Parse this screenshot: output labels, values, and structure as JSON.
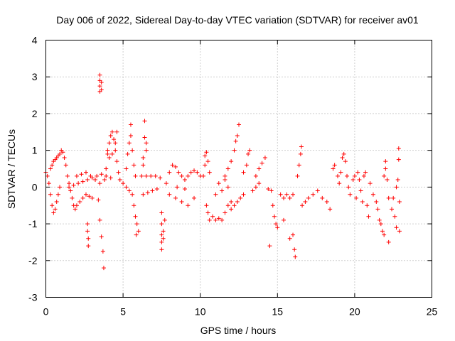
{
  "chart_data": {
    "type": "scatter",
    "title": "Day 006 of 2022, Sidereal Day-to-day VTEC variation (SDTVAR) for receiver av01",
    "xlabel": "GPS time / hours",
    "ylabel": "SDTVAR / TECUs",
    "xlim": [
      0,
      25
    ],
    "ylim": [
      -3,
      4
    ],
    "xticks": [
      0,
      5,
      10,
      15,
      20,
      25
    ],
    "yticks": [
      -3,
      -2,
      -1,
      0,
      1,
      2,
      3,
      4
    ],
    "grid": true,
    "marker": "+",
    "color": "#ff0000",
    "series": [
      {
        "name": "SDTVAR",
        "points": [
          [
            0.0,
            0.4
          ],
          [
            0.1,
            0.3
          ],
          [
            0.2,
            0.1
          ],
          [
            0.3,
            -0.2
          ],
          [
            0.4,
            -0.5
          ],
          [
            0.5,
            -0.7
          ],
          [
            0.6,
            -0.6
          ],
          [
            0.7,
            -0.4
          ],
          [
            0.8,
            -0.2
          ],
          [
            0.9,
            0.0
          ],
          [
            0.3,
            0.5
          ],
          [
            0.4,
            0.6
          ],
          [
            0.5,
            0.7
          ],
          [
            0.6,
            0.75
          ],
          [
            0.7,
            0.8
          ],
          [
            0.8,
            0.85
          ],
          [
            0.9,
            0.9
          ],
          [
            1.0,
            1.0
          ],
          [
            1.1,
            0.95
          ],
          [
            1.2,
            0.8
          ],
          [
            1.3,
            0.6
          ],
          [
            1.4,
            0.3
          ],
          [
            1.5,
            0.1
          ],
          [
            1.6,
            -0.1
          ],
          [
            1.7,
            -0.3
          ],
          [
            1.8,
            -0.5
          ],
          [
            1.9,
            -0.6
          ],
          [
            2.0,
            -0.5
          ],
          [
            2.2,
            -0.4
          ],
          [
            2.4,
            -0.3
          ],
          [
            1.5,
            0.0
          ],
          [
            1.8,
            0.05
          ],
          [
            2.1,
            0.1
          ],
          [
            2.4,
            0.15
          ],
          [
            2.7,
            0.2
          ],
          [
            3.0,
            0.25
          ],
          [
            3.3,
            0.3
          ],
          [
            3.6,
            0.35
          ],
          [
            3.9,
            0.3
          ],
          [
            4.2,
            0.25
          ],
          [
            2.0,
            0.3
          ],
          [
            2.3,
            0.35
          ],
          [
            2.6,
            0.4
          ],
          [
            2.9,
            0.3
          ],
          [
            3.2,
            0.2
          ],
          [
            3.5,
            0.1
          ],
          [
            2.6,
            -0.2
          ],
          [
            2.8,
            -0.25
          ],
          [
            3.0,
            -0.3
          ],
          [
            3.4,
            -0.35
          ],
          [
            2.7,
            -1.0
          ],
          [
            2.7,
            -1.2
          ],
          [
            2.75,
            -1.4
          ],
          [
            2.75,
            -1.6
          ],
          [
            3.5,
            -0.9
          ],
          [
            3.6,
            -1.35
          ],
          [
            3.7,
            -1.75
          ],
          [
            3.75,
            -2.2
          ],
          [
            3.5,
            2.6
          ],
          [
            3.5,
            2.75
          ],
          [
            3.5,
            2.9
          ],
          [
            3.5,
            3.05
          ],
          [
            3.6,
            2.65
          ],
          [
            3.6,
            2.85
          ],
          [
            3.8,
            0.2
          ],
          [
            3.9,
            0.5
          ],
          [
            4.0,
            0.9
          ],
          [
            4.1,
            1.2
          ],
          [
            4.2,
            1.4
          ],
          [
            4.3,
            1.5
          ],
          [
            4.4,
            1.3
          ],
          [
            4.5,
            1.0
          ],
          [
            4.6,
            0.7
          ],
          [
            4.7,
            0.4
          ],
          [
            4.0,
            1.0
          ],
          [
            4.1,
            0.8
          ],
          [
            4.3,
            0.9
          ],
          [
            4.5,
            1.2
          ],
          [
            4.6,
            1.5
          ],
          [
            4.8,
            0.2
          ],
          [
            5.0,
            0.1
          ],
          [
            5.2,
            0.0
          ],
          [
            5.4,
            -0.1
          ],
          [
            5.2,
            0.5
          ],
          [
            5.3,
            0.9
          ],
          [
            5.4,
            1.2
          ],
          [
            5.5,
            1.4
          ],
          [
            5.5,
            1.7
          ],
          [
            5.6,
            1.0
          ],
          [
            5.7,
            0.6
          ],
          [
            5.8,
            0.3
          ],
          [
            5.6,
            -0.2
          ],
          [
            5.7,
            -0.5
          ],
          [
            5.8,
            -0.8
          ],
          [
            5.9,
            -1.0
          ],
          [
            6.0,
            -1.2
          ],
          [
            5.85,
            -1.3
          ],
          [
            6.2,
            0.3
          ],
          [
            6.5,
            0.3
          ],
          [
            6.8,
            0.3
          ],
          [
            7.1,
            0.3
          ],
          [
            7.4,
            0.25
          ],
          [
            6.3,
            -0.2
          ],
          [
            6.6,
            -0.15
          ],
          [
            6.9,
            -0.1
          ],
          [
            7.2,
            -0.05
          ],
          [
            6.4,
            1.8
          ],
          [
            6.4,
            1.35
          ],
          [
            6.5,
            1.2
          ],
          [
            6.5,
            1.0
          ],
          [
            6.3,
            0.8
          ],
          [
            6.3,
            0.6
          ],
          [
            7.5,
            -0.7
          ],
          [
            7.5,
            -1.0
          ],
          [
            7.5,
            -1.3
          ],
          [
            7.5,
            -1.5
          ],
          [
            7.5,
            -1.7
          ],
          [
            7.6,
            -1.4
          ],
          [
            7.6,
            -1.2
          ],
          [
            7.7,
            -0.9
          ],
          [
            7.8,
            0.1
          ],
          [
            8.0,
            0.4
          ],
          [
            8.2,
            0.6
          ],
          [
            8.4,
            0.55
          ],
          [
            8.6,
            0.4
          ],
          [
            8.8,
            0.3
          ],
          [
            9.0,
            0.2
          ],
          [
            9.2,
            0.3
          ],
          [
            9.4,
            0.4
          ],
          [
            9.6,
            0.45
          ],
          [
            9.8,
            0.4
          ],
          [
            10.0,
            0.3
          ],
          [
            8.0,
            -0.2
          ],
          [
            8.4,
            -0.3
          ],
          [
            8.8,
            -0.4
          ],
          [
            9.2,
            -0.5
          ],
          [
            9.6,
            -0.3
          ],
          [
            8.5,
            0.0
          ],
          [
            9.0,
            -0.05
          ],
          [
            10.2,
            0.3
          ],
          [
            10.3,
            0.6
          ],
          [
            10.3,
            0.85
          ],
          [
            10.4,
            0.95
          ],
          [
            10.5,
            0.7
          ],
          [
            10.6,
            0.4
          ],
          [
            10.4,
            -0.5
          ],
          [
            10.5,
            -0.7
          ],
          [
            10.6,
            -0.9
          ],
          [
            10.8,
            -0.8
          ],
          [
            11.0,
            -0.9
          ],
          [
            11.2,
            -0.85
          ],
          [
            11.4,
            -0.9
          ],
          [
            11.6,
            -0.7
          ],
          [
            11.8,
            -0.5
          ],
          [
            12.0,
            -0.4
          ],
          [
            11.0,
            -0.2
          ],
          [
            11.4,
            -0.1
          ],
          [
            11.8,
            0.0
          ],
          [
            11.2,
            0.1
          ],
          [
            11.6,
            0.2
          ],
          [
            12.0,
            -0.6
          ],
          [
            12.2,
            -0.5
          ],
          [
            12.4,
            -0.4
          ],
          [
            11.6,
            0.3
          ],
          [
            11.8,
            0.5
          ],
          [
            12.0,
            0.7
          ],
          [
            12.2,
            1.0
          ],
          [
            12.3,
            1.25
          ],
          [
            12.4,
            1.4
          ],
          [
            12.5,
            1.7
          ],
          [
            12.6,
            -0.3
          ],
          [
            12.8,
            -0.2
          ],
          [
            12.8,
            0.4
          ],
          [
            13.0,
            0.6
          ],
          [
            13.1,
            0.9
          ],
          [
            13.2,
            1.0
          ],
          [
            13.4,
            -0.1
          ],
          [
            13.6,
            0.0
          ],
          [
            13.8,
            0.1
          ],
          [
            13.6,
            0.3
          ],
          [
            13.8,
            0.5
          ],
          [
            14.0,
            0.65
          ],
          [
            14.2,
            0.8
          ],
          [
            14.4,
            -0.05
          ],
          [
            14.6,
            -0.1
          ],
          [
            14.7,
            -0.5
          ],
          [
            14.8,
            -0.8
          ],
          [
            14.9,
            -1.0
          ],
          [
            15.0,
            -1.1
          ],
          [
            14.5,
            -1.6
          ],
          [
            15.2,
            -0.2
          ],
          [
            15.4,
            -0.3
          ],
          [
            15.6,
            -0.2
          ],
          [
            15.8,
            -0.3
          ],
          [
            16.0,
            -0.2
          ],
          [
            15.4,
            -0.9
          ],
          [
            15.8,
            -1.4
          ],
          [
            16.0,
            -1.3
          ],
          [
            16.1,
            -1.7
          ],
          [
            16.15,
            -1.9
          ],
          [
            16.3,
            0.3
          ],
          [
            16.4,
            0.6
          ],
          [
            16.5,
            0.9
          ],
          [
            16.55,
            1.1
          ],
          [
            16.6,
            -0.5
          ],
          [
            16.8,
            -0.4
          ],
          [
            17.0,
            -0.3
          ],
          [
            17.3,
            -0.2
          ],
          [
            17.6,
            -0.1
          ],
          [
            17.9,
            -0.3
          ],
          [
            18.2,
            -0.4
          ],
          [
            18.4,
            -0.6
          ],
          [
            18.6,
            0.5
          ],
          [
            18.7,
            0.6
          ],
          [
            18.9,
            0.3
          ],
          [
            19.0,
            0.1
          ],
          [
            19.1,
            0.4
          ],
          [
            19.2,
            0.8
          ],
          [
            19.3,
            0.9
          ],
          [
            19.4,
            0.7
          ],
          [
            19.5,
            0.3
          ],
          [
            19.6,
            0.0
          ],
          [
            19.7,
            -0.2
          ],
          [
            19.9,
            0.2
          ],
          [
            20.0,
            0.3
          ],
          [
            20.1,
            -0.3
          ],
          [
            20.2,
            0.4
          ],
          [
            20.3,
            0.2
          ],
          [
            20.4,
            -0.1
          ],
          [
            20.5,
            -0.4
          ],
          [
            20.6,
            0.3
          ],
          [
            20.7,
            0.4
          ],
          [
            20.8,
            -0.5
          ],
          [
            20.9,
            -0.8
          ],
          [
            21.0,
            0.1
          ],
          [
            21.2,
            -0.2
          ],
          [
            21.4,
            -0.4
          ],
          [
            21.5,
            -0.6
          ],
          [
            21.6,
            -0.9
          ],
          [
            21.7,
            -1.0
          ],
          [
            21.8,
            -1.2
          ],
          [
            21.9,
            -1.3
          ],
          [
            21.9,
            0.3
          ],
          [
            22.0,
            0.5
          ],
          [
            22.0,
            0.7
          ],
          [
            22.1,
            0.2
          ],
          [
            22.2,
            -0.3
          ],
          [
            22.2,
            -1.5
          ],
          [
            22.4,
            -0.6
          ],
          [
            22.5,
            -0.3
          ],
          [
            22.6,
            -0.8
          ],
          [
            22.7,
            -1.1
          ],
          [
            22.7,
            0.0
          ],
          [
            22.8,
            0.2
          ],
          [
            22.85,
            1.05
          ],
          [
            22.85,
            0.75
          ],
          [
            22.9,
            -0.4
          ],
          [
            22.9,
            -1.2
          ]
        ]
      }
    ]
  }
}
